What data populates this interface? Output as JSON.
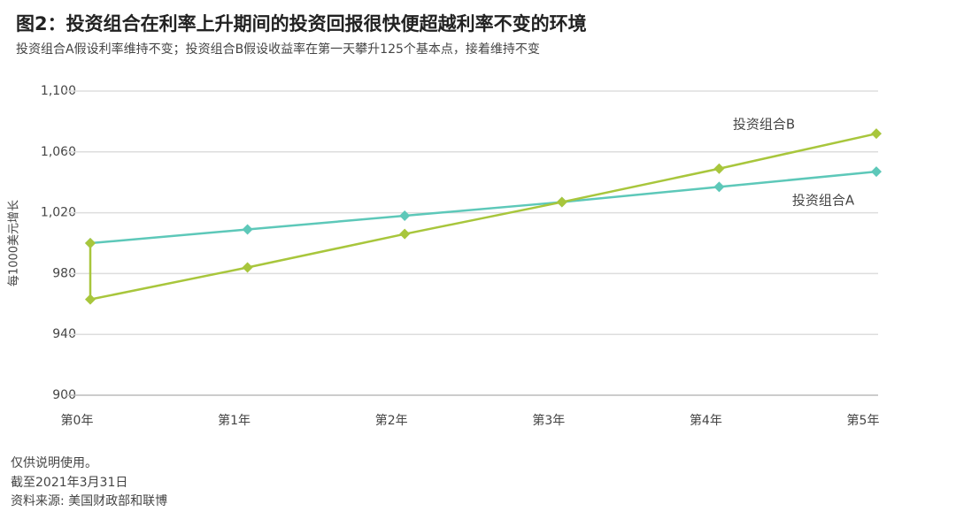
{
  "chart_data": {
    "type": "line",
    "title": "图2：投资组合在利率上升期间的投资回报很快便超越利率不变的环境",
    "subtitle": "投资组合A假设利率维持不变；投资组合B假设收益率在第一天攀升125个基本点，接着维持不变",
    "y_label": "每1000美元增长",
    "xlim": [
      0,
      5
    ],
    "xticks": [
      {
        "value": 0,
        "label": "第0年"
      },
      {
        "value": 1,
        "label": "第1年"
      },
      {
        "value": 2,
        "label": "第2年"
      },
      {
        "value": 3,
        "label": "第3年"
      },
      {
        "value": 4,
        "label": "第4年"
      },
      {
        "value": 5,
        "label": "第5年"
      }
    ],
    "ylim": [
      900,
      1100
    ],
    "yticks": [
      900,
      940,
      980,
      {
        "value": 1020,
        "label": "1,020"
      },
      {
        "value": 1060,
        "label": "1,060"
      },
      {
        "value": 1100,
        "label": "1,100"
      }
    ],
    "grid": true,
    "series": [
      {
        "name": "投资组合A",
        "color": "#5dc8b9",
        "x": [
          0,
          1,
          2,
          3,
          4,
          5
        ],
        "values": [
          1000,
          1009,
          1018,
          1027,
          1037,
          1047
        ]
      },
      {
        "name": "投资组合B",
        "color": "#a8c63c",
        "x": [
          0,
          0,
          1,
          2,
          3,
          4,
          5
        ],
        "values": [
          1000,
          963,
          984,
          1006,
          1027,
          1049,
          1072
        ]
      }
    ],
    "footnotes": [
      "仅供说明使用。",
      "截至2021年3月31日",
      "资料来源: 美国财政部和联博"
    ]
  }
}
